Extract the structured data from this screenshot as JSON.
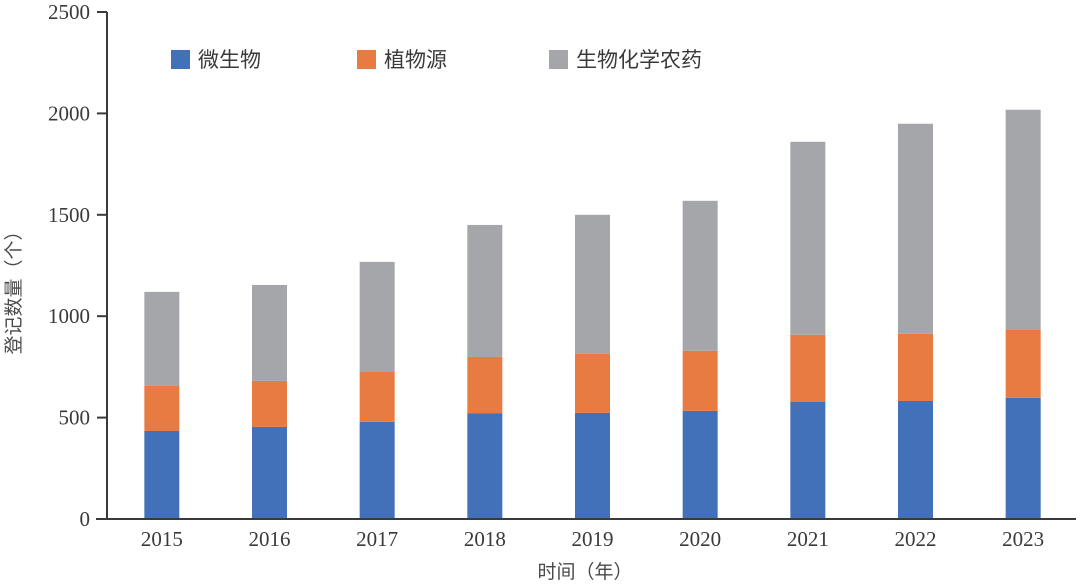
{
  "chart_data": {
    "type": "bar",
    "stacked": true,
    "title": "",
    "xlabel": "时间（年）",
    "ylabel": "登记数量（个）",
    "ylim": [
      0,
      2500
    ],
    "yticks": [
      "0",
      "500",
      "1000",
      "1500",
      "2000",
      "2500"
    ],
    "categories": [
      "2015",
      "2016",
      "2017",
      "2018",
      "2019",
      "2020",
      "2021",
      "2022",
      "2023"
    ],
    "grid": false,
    "legend_position": "top",
    "series": [
      {
        "name": "微生物",
        "color": "#4270B9",
        "values": [
          434,
          454,
          479,
          522,
          523,
          533,
          577,
          582,
          597
        ]
      },
      {
        "name": "植物源",
        "color": "#E87B42",
        "values": [
          222,
          227,
          246,
          277,
          291,
          296,
          331,
          331,
          335
        ]
      },
      {
        "name": "生物化学农药",
        "color": "#A5A6AA",
        "values": [
          464,
          473,
          543,
          651,
          686,
          740,
          952,
          1036,
          1086
        ]
      }
    ]
  }
}
